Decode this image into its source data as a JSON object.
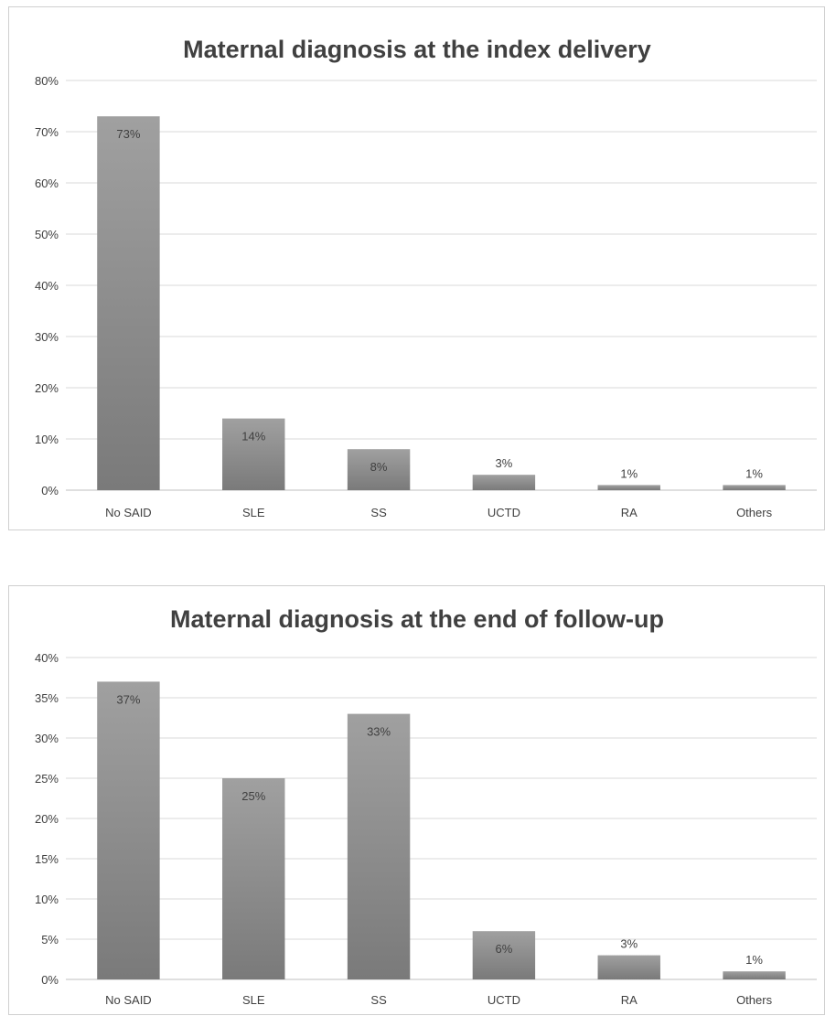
{
  "chart_data": [
    {
      "type": "bar",
      "title": "Maternal diagnosis at the index delivery",
      "categories": [
        "No SAID",
        "SLE",
        "SS",
        "UCTD",
        "RA",
        "Others"
      ],
      "values": [
        73,
        14,
        8,
        3,
        1,
        1
      ],
      "data_labels": [
        "73%",
        "14%",
        "8%",
        "3%",
        "1%",
        "1%"
      ],
      "ylim": [
        0,
        80
      ],
      "ytick_values": [
        0,
        10,
        20,
        30,
        40,
        50,
        60,
        70,
        80
      ],
      "ytick_labels": [
        "0%",
        "10%",
        "20%",
        "30%",
        "40%",
        "50%",
        "60%",
        "70%",
        "80%"
      ],
      "xlabel": "",
      "ylabel": "",
      "grid": true,
      "legend": "none",
      "bar_color": "#8c8c8c"
    },
    {
      "type": "bar",
      "title": "Maternal diagnosis at the end of follow-up",
      "categories": [
        "No SAID",
        "SLE",
        "SS",
        "UCTD",
        "RA",
        "Others"
      ],
      "values": [
        37,
        25,
        33,
        6,
        3,
        1
      ],
      "data_labels": [
        "37%",
        "25%",
        "33%",
        "6%",
        "3%",
        "1%"
      ],
      "ylim": [
        0,
        40
      ],
      "ytick_values": [
        0,
        5,
        10,
        15,
        20,
        25,
        30,
        35,
        40
      ],
      "ytick_labels": [
        "0%",
        "5%",
        "10%",
        "15%",
        "20%",
        "25%",
        "30%",
        "35%",
        "40%"
      ],
      "xlabel": "",
      "ylabel": "",
      "grid": true,
      "legend": "none",
      "bar_color": "#8c8c8c"
    }
  ]
}
